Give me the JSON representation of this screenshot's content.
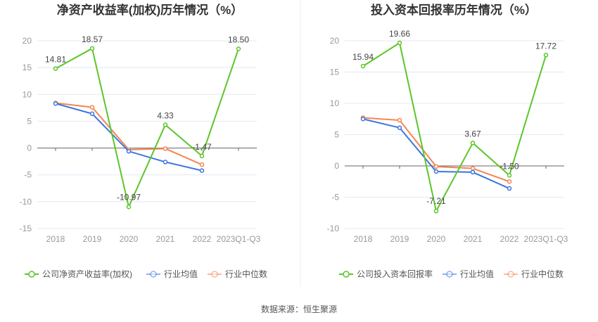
{
  "source": "数据来源：恒生聚源",
  "colors": {
    "company": "#5cc62a",
    "average": "#3a76e0",
    "median": "#f7834f"
  },
  "chart_data": [
    {
      "type": "line",
      "title": "净资产收益率(加权)历年情况（%）",
      "categories": [
        "2018",
        "2019",
        "2020",
        "2021",
        "2022",
        "2023Q1-Q3"
      ],
      "ylim": [
        -15,
        20
      ],
      "yticks": [
        20,
        15,
        10,
        5,
        0,
        -5,
        -10,
        -15
      ],
      "grid": true,
      "legend": "bottom",
      "series": [
        {
          "name": "公司净资产收益率(加权)",
          "key": "company",
          "values": [
            14.81,
            18.57,
            -10.97,
            4.33,
            -1.47,
            18.5
          ],
          "labels": [
            "14.81",
            "18.57",
            "-10.97",
            "4.33",
            "-1.47",
            "18.50"
          ]
        },
        {
          "name": "行业均值",
          "key": "average",
          "values": [
            8.3,
            6.4,
            -0.6,
            -2.6,
            -4.2,
            null
          ]
        },
        {
          "name": "行业中位数",
          "key": "median",
          "values": [
            8.4,
            7.6,
            -0.3,
            -0.1,
            -3.1,
            null
          ]
        }
      ]
    },
    {
      "type": "line",
      "title": "投入资本回报率历年情况（%）",
      "categories": [
        "2018",
        "2019",
        "2020",
        "2021",
        "2022",
        "2023Q1-Q3"
      ],
      "ylim": [
        -10,
        20
      ],
      "yticks": [
        20,
        15,
        10,
        5,
        0,
        -5,
        -10
      ],
      "grid": true,
      "legend": "bottom",
      "series": [
        {
          "name": "公司投入资本回报率",
          "key": "company",
          "values": [
            15.94,
            19.66,
            -7.21,
            3.67,
            -1.5,
            17.72
          ],
          "labels": [
            "15.94",
            "19.66",
            "-7.21",
            "3.67",
            "-1.50",
            "17.72"
          ]
        },
        {
          "name": "行业均值",
          "key": "average",
          "values": [
            7.5,
            6.1,
            -0.9,
            -1.0,
            -3.6,
            null
          ]
        },
        {
          "name": "行业中位数",
          "key": "median",
          "values": [
            7.7,
            7.3,
            -0.1,
            -0.4,
            -2.5,
            null
          ]
        }
      ]
    }
  ]
}
